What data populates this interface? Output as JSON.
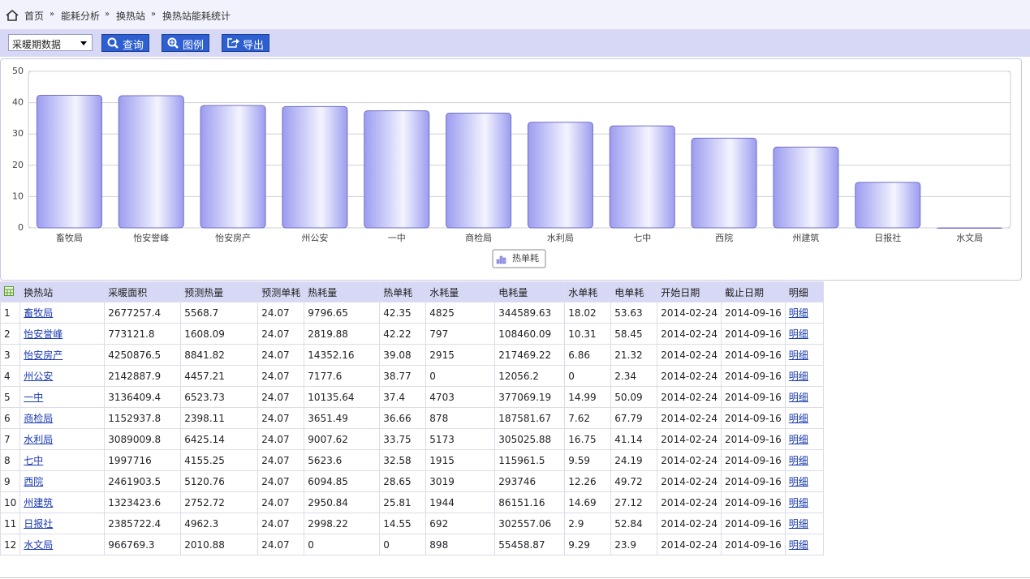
{
  "breadcrumb": [
    "首页",
    "能耗分析",
    "换热站",
    "换热站能耗统计"
  ],
  "toolbar": {
    "select": "采暖期数据",
    "buttons": [
      "查询",
      "图例",
      "导出"
    ]
  },
  "chart_data": {
    "type": "bar",
    "legend": "热单耗",
    "color": "#9c9cf0",
    "categories": [
      "畜牧局",
      "怡安誉峰",
      "怡安房产",
      "州公安",
      "一中",
      "商检局",
      "水利局",
      "七中",
      "西院",
      "州建筑",
      "日报社",
      "水文局"
    ],
    "values": [
      42.35,
      42.22,
      39.08,
      38.77,
      37.4,
      36.66,
      33.75,
      32.58,
      28.65,
      25.81,
      14.55,
      0
    ],
    "ylim": [
      0,
      50
    ],
    "yticks": [
      0,
      10,
      20,
      30,
      40,
      50
    ],
    "grid": true
  },
  "table": {
    "header": [
      "换热站",
      "采暖面积",
      "预测热量",
      "预测单耗",
      "热耗量",
      "热单耗",
      "水耗量",
      "电耗量",
      "水单耗",
      "电单耗",
      "开始日期",
      "截止日期",
      "明细"
    ],
    "rows": [
      [
        1,
        "畜牧局",
        2677257.4,
        5568.7,
        24.07,
        9796.65,
        42.35,
        4825,
        344589.63,
        18.02,
        53.63,
        "2014-02-24",
        "2014-09-16",
        "明细"
      ],
      [
        2,
        "怡安誉峰",
        773121.8,
        1608.09,
        24.07,
        2819.88,
        42.22,
        797,
        108460.09,
        10.31,
        58.45,
        "2014-02-24",
        "2014-09-16",
        "明细"
      ],
      [
        3,
        "怡安房产",
        4250876.5,
        8841.82,
        24.07,
        14352.16,
        39.08,
        2915,
        217469.22,
        6.86,
        21.32,
        "2014-02-24",
        "2014-09-16",
        "明细"
      ],
      [
        4,
        "州公安",
        2142887.9,
        4457.21,
        24.07,
        7177.6,
        38.77,
        0,
        12056.2,
        0,
        2.34,
        "2014-02-24",
        "2014-09-16",
        "明细"
      ],
      [
        5,
        "一中",
        3136409.4,
        6523.73,
        24.07,
        10135.64,
        37.4,
        4703,
        377069.19,
        14.99,
        50.09,
        "2014-02-24",
        "2014-09-16",
        "明细"
      ],
      [
        6,
        "商检局",
        1152937.8,
        2398.11,
        24.07,
        3651.49,
        36.66,
        878,
        187581.67,
        7.62,
        67.79,
        "2014-02-24",
        "2014-09-16",
        "明细"
      ],
      [
        7,
        "水利局",
        3089009.8,
        6425.14,
        24.07,
        9007.62,
        33.75,
        5173,
        305025.88,
        16.75,
        41.14,
        "2014-02-24",
        "2014-09-16",
        "明细"
      ],
      [
        8,
        "七中",
        1997716,
        4155.25,
        24.07,
        5623.6,
        32.58,
        1915,
        115961.5,
        9.59,
        24.19,
        "2014-02-24",
        "2014-09-16",
        "明细"
      ],
      [
        9,
        "西院",
        2461903.5,
        5120.76,
        24.07,
        6094.85,
        28.65,
        3019,
        293746,
        12.26,
        49.72,
        "2014-02-24",
        "2014-09-16",
        "明细"
      ],
      [
        10,
        "州建筑",
        1323423.6,
        2752.72,
        24.07,
        2950.84,
        25.81,
        1944,
        86151.16,
        14.69,
        27.12,
        "2014-02-24",
        "2014-09-16",
        "明细"
      ],
      [
        11,
        "日报社",
        2385722.4,
        4962.3,
        24.07,
        2998.22,
        14.55,
        692,
        302557.06,
        2.9,
        52.84,
        "2014-02-24",
        "2014-09-16",
        "明细"
      ],
      [
        12,
        "水文局",
        966769.3,
        2010.88,
        24.07,
        0,
        0,
        898,
        55458.87,
        9.29,
        23.9,
        "2014-02-24",
        "2014-09-16",
        "明细"
      ]
    ]
  }
}
